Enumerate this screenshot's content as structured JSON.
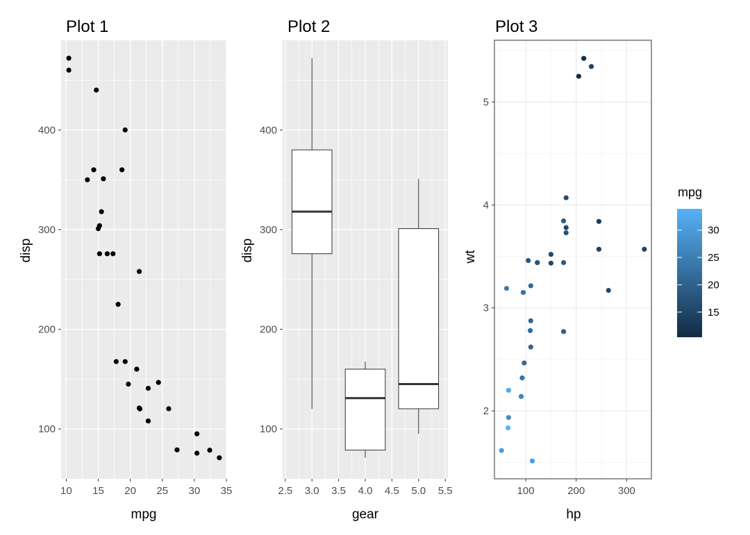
{
  "colors": {
    "panel_grey": "#ebebeb",
    "grid_white": "#ffffff",
    "grid_light": "#ebebeb",
    "point_black": "#000000",
    "box_line": "#333333",
    "tick_text": "#4d4d4d",
    "gradient_low": "#132b43",
    "gradient_high": "#56b1f7"
  },
  "chart_data": [
    {
      "type": "scatter",
      "title": "Plot 1",
      "xlabel": "mpg",
      "ylabel": "disp",
      "xlim": [
        9.2,
        35.0
      ],
      "ylim": [
        50,
        490
      ],
      "x_ticks": [
        10,
        15,
        20,
        25,
        30,
        35
      ],
      "x_tick_labels": [
        "10",
        "15",
        "20",
        "25",
        "30",
        "35"
      ],
      "y_ticks": [
        100,
        200,
        300,
        400
      ],
      "y_tick_labels": [
        "100",
        "200",
        "300",
        "400"
      ],
      "grid": true,
      "points": [
        {
          "x": 21.0,
          "y": 160
        },
        {
          "x": 21.0,
          "y": 160
        },
        {
          "x": 22.8,
          "y": 108
        },
        {
          "x": 21.4,
          "y": 258
        },
        {
          "x": 18.7,
          "y": 360
        },
        {
          "x": 18.1,
          "y": 225
        },
        {
          "x": 14.3,
          "y": 360
        },
        {
          "x": 24.4,
          "y": 146.7
        },
        {
          "x": 22.8,
          "y": 140.8
        },
        {
          "x": 19.2,
          "y": 167.6
        },
        {
          "x": 17.8,
          "y": 167.6
        },
        {
          "x": 16.4,
          "y": 275.8
        },
        {
          "x": 17.3,
          "y": 275.8
        },
        {
          "x": 15.2,
          "y": 275.8
        },
        {
          "x": 10.4,
          "y": 472
        },
        {
          "x": 10.4,
          "y": 460
        },
        {
          "x": 14.7,
          "y": 440
        },
        {
          "x": 32.4,
          "y": 78.7
        },
        {
          "x": 30.4,
          "y": 75.7
        },
        {
          "x": 33.9,
          "y": 71.1
        },
        {
          "x": 21.5,
          "y": 120.1
        },
        {
          "x": 15.5,
          "y": 318
        },
        {
          "x": 15.2,
          "y": 304
        },
        {
          "x": 13.3,
          "y": 350
        },
        {
          "x": 19.2,
          "y": 400
        },
        {
          "x": 27.3,
          "y": 79
        },
        {
          "x": 26.0,
          "y": 120.3
        },
        {
          "x": 30.4,
          "y": 95.1
        },
        {
          "x": 15.8,
          "y": 351
        },
        {
          "x": 19.7,
          "y": 145
        },
        {
          "x": 15.0,
          "y": 301
        },
        {
          "x": 21.4,
          "y": 121
        }
      ]
    },
    {
      "type": "box",
      "title": "Plot 2",
      "xlabel": "gear",
      "ylabel": "disp",
      "xlim": [
        2.45,
        5.55
      ],
      "ylim": [
        50,
        490
      ],
      "x_ticks": [
        2.5,
        3.0,
        3.5,
        4.0,
        4.5,
        5.0,
        5.5
      ],
      "x_tick_labels": [
        "2.5",
        "3.0",
        "3.5",
        "4.0",
        "4.5",
        "5.0",
        "5.5"
      ],
      "y_ticks": [
        100,
        200,
        300,
        400
      ],
      "y_tick_labels": [
        "100",
        "200",
        "300",
        "400"
      ],
      "grid": true,
      "boxes": [
        {
          "x": 3,
          "whisker_low": 120.1,
          "q1": 275.8,
          "median": 318,
          "q3": 380,
          "whisker_high": 472
        },
        {
          "x": 4,
          "whisker_low": 71.1,
          "q1": 78.8,
          "median": 130.9,
          "q3": 160,
          "whisker_high": 167.6
        },
        {
          "x": 5,
          "whisker_low": 95.1,
          "q1": 120.3,
          "median": 145,
          "q3": 301,
          "whisker_high": 351
        }
      ]
    },
    {
      "type": "scatter",
      "title": "Plot 3",
      "xlabel": "hp",
      "ylabel": "wt",
      "xlim": [
        38,
        349
      ],
      "ylim": [
        1.34,
        5.6
      ],
      "x_ticks": [
        100,
        200,
        300
      ],
      "x_tick_labels": [
        "100",
        "200",
        "300"
      ],
      "y_ticks": [
        2,
        3,
        4,
        5
      ],
      "y_tick_labels": [
        "2",
        "3",
        "4",
        "5"
      ],
      "grid": true,
      "color_variable": "mpg",
      "color_range": [
        10.4,
        33.9
      ],
      "points": [
        {
          "x": 110,
          "y": 2.62,
          "mpg": 21.0
        },
        {
          "x": 110,
          "y": 2.875,
          "mpg": 21.0
        },
        {
          "x": 93,
          "y": 2.32,
          "mpg": 22.8
        },
        {
          "x": 110,
          "y": 3.215,
          "mpg": 21.4
        },
        {
          "x": 175,
          "y": 3.44,
          "mpg": 18.7
        },
        {
          "x": 105,
          "y": 3.46,
          "mpg": 18.1
        },
        {
          "x": 245,
          "y": 3.57,
          "mpg": 14.3
        },
        {
          "x": 62,
          "y": 3.19,
          "mpg": 24.4
        },
        {
          "x": 95,
          "y": 3.15,
          "mpg": 22.8
        },
        {
          "x": 123,
          "y": 3.44,
          "mpg": 19.2
        },
        {
          "x": 123,
          "y": 3.44,
          "mpg": 17.8
        },
        {
          "x": 180,
          "y": 4.07,
          "mpg": 16.4
        },
        {
          "x": 180,
          "y": 3.73,
          "mpg": 17.3
        },
        {
          "x": 180,
          "y": 3.78,
          "mpg": 15.2
        },
        {
          "x": 205,
          "y": 5.25,
          "mpg": 10.4
        },
        {
          "x": 215,
          "y": 5.424,
          "mpg": 10.4
        },
        {
          "x": 230,
          "y": 5.345,
          "mpg": 14.7
        },
        {
          "x": 66,
          "y": 2.2,
          "mpg": 32.4
        },
        {
          "x": 52,
          "y": 1.615,
          "mpg": 30.4
        },
        {
          "x": 65,
          "y": 1.835,
          "mpg": 33.9
        },
        {
          "x": 97,
          "y": 2.465,
          "mpg": 21.5
        },
        {
          "x": 150,
          "y": 3.52,
          "mpg": 15.5
        },
        {
          "x": 150,
          "y": 3.435,
          "mpg": 15.2
        },
        {
          "x": 245,
          "y": 3.84,
          "mpg": 13.3
        },
        {
          "x": 175,
          "y": 3.845,
          "mpg": 19.2
        },
        {
          "x": 66,
          "y": 1.935,
          "mpg": 27.3
        },
        {
          "x": 91,
          "y": 2.14,
          "mpg": 26.0
        },
        {
          "x": 113,
          "y": 1.513,
          "mpg": 30.4
        },
        {
          "x": 264,
          "y": 3.17,
          "mpg": 15.8
        },
        {
          "x": 175,
          "y": 2.77,
          "mpg": 19.7
        },
        {
          "x": 335,
          "y": 3.57,
          "mpg": 15.0
        },
        {
          "x": 109,
          "y": 2.78,
          "mpg": 21.4
        }
      ],
      "legend": {
        "title": "mpg",
        "placement": "right",
        "range": [
          10.4,
          33.9
        ],
        "ticks": [
          15,
          20,
          25,
          30
        ],
        "tick_labels": [
          "15",
          "20",
          "25",
          "30"
        ]
      }
    }
  ]
}
